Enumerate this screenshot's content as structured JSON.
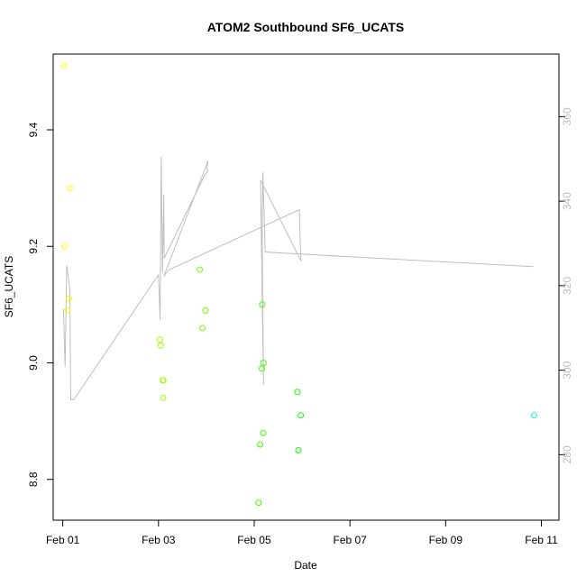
{
  "chart_data": {
    "type": "scatter",
    "title": "ATOM2 Southbound SF6_UCATS",
    "xlabel": "Date",
    "ylabel": "SF6_UCATS",
    "x_ticks": [
      "Feb 01",
      "Feb 03",
      "Feb 05",
      "Feb 07",
      "Feb 09",
      "Feb 11"
    ],
    "y_ticks": [
      "8.8",
      "9.0",
      "9.2",
      "9.4"
    ],
    "y2_ticks": [
      "280",
      "300",
      "320",
      "340",
      "360"
    ],
    "xlim": [
      "2016-01-31T19:12",
      "2016-02-11T08:48"
    ],
    "ylim": [
      8.73,
      9.53
    ],
    "y2lim": [
      264.5,
      374.8
    ],
    "grid": false,
    "series": [
      {
        "kind": "points",
        "color_scale": "yellow-to-cyan by time",
        "x": [
          "2016-02-01T00:40",
          "2016-02-01T00:50",
          "2016-02-01T03:30",
          "2016-02-01T03:10",
          "2016-02-01T02:20",
          "2016-02-03T00:40",
          "2016-02-03T01:10",
          "2016-02-03T02:30",
          "2016-02-03T02:10",
          "2016-02-03T02:20",
          "2016-02-03T20:40",
          "2016-02-03T22:00",
          "2016-02-03T23:30",
          "2016-02-05T04:00",
          "2016-02-05T04:40",
          "2016-02-05T04:30",
          "2016-02-05T03:00",
          "2016-02-05T02:10",
          "2016-02-05T03:50",
          "2016-02-05T21:40",
          "2016-02-05T22:10",
          "2016-02-05T23:20",
          "2016-02-10T20:20"
        ],
        "y": [
          9.51,
          9.2,
          9.3,
          9.11,
          9.09,
          9.04,
          9.03,
          8.97,
          8.97,
          8.94,
          9.16,
          9.06,
          9.09,
          9.1,
          9.0,
          8.88,
          8.86,
          8.76,
          8.99,
          8.95,
          8.85,
          8.91,
          8.91
        ]
      },
      {
        "kind": "line",
        "color": "#bebebe",
        "axis": "right",
        "x": [
          "2016-02-01T00:20",
          "2016-02-01T01:10",
          "2016-02-01T02:00",
          "2016-02-01T03:30",
          "2016-02-01T04:00",
          "2016-02-01T05:30",
          "2016-02-03T00:00",
          "2016-02-03T00:50",
          "2016-02-03T01:20",
          "2016-02-03T02:00",
          "2016-02-03T02:40",
          "2016-02-03T02:50",
          "2016-02-03T23:30",
          "2016-02-04T00:50",
          "2016-02-04T00:10",
          "2016-02-04T00:50",
          "2016-02-04T00:50",
          "2016-02-03T02:40",
          "2016-02-03T05:00",
          "2016-02-05T22:40",
          "2016-02-05T23:00",
          "2016-02-05T23:30",
          "2016-02-05T03:10",
          "2016-02-05T04:40",
          "2016-02-05T04:00",
          "2016-02-05T04:20",
          "2016-02-05T05:30",
          "2016-02-05T06:30",
          "2016-02-10T20:00"
        ],
        "y": [
          314.5,
          300.8,
          324.8,
          319.2,
          293.0,
          293.0,
          322.6,
          311.9,
          350.4,
          323.2,
          341.5,
          326.5,
          346.5,
          347.0,
          347.6,
          349.5,
          349.5,
          322.2,
          323.7,
          338.0,
          330.7,
          325.8,
          345.0,
          296.5,
          331.6,
          346.8,
          327.9,
          327.9,
          324.5
        ]
      }
    ]
  }
}
